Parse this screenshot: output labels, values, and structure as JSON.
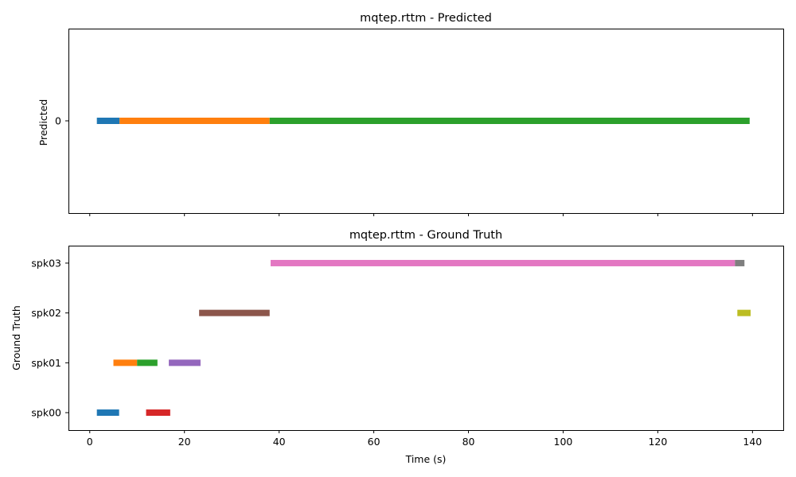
{
  "chart_data": [
    {
      "type": "timeline",
      "title": "mqtep.rttm - Predicted",
      "ylabel": "Predicted",
      "xlabel": "",
      "xlim": [
        -4.5,
        146.5
      ],
      "x_ticks": [
        0,
        20,
        40,
        60,
        80,
        100,
        120,
        140
      ],
      "x_tick_labels_visible": false,
      "categories": [
        "0"
      ],
      "grid": false,
      "series": [
        {
          "category": "0",
          "start": 1.5,
          "end": 6.3,
          "color": "#1f77b4"
        },
        {
          "category": "0",
          "start": 6.3,
          "end": 38.0,
          "color": "#ff7f0e"
        },
        {
          "category": "0",
          "start": 38.0,
          "end": 139.4,
          "color": "#2ca02c"
        }
      ]
    },
    {
      "type": "timeline",
      "title": "mqtep.rttm - Ground Truth",
      "ylabel": "Ground Truth",
      "xlabel": "Time (s)",
      "xlim": [
        -4.5,
        146.5
      ],
      "x_ticks": [
        0,
        20,
        40,
        60,
        80,
        100,
        120,
        140
      ],
      "x_tick_labels_visible": true,
      "categories": [
        "spk00",
        "spk01",
        "spk02",
        "spk03"
      ],
      "grid": false,
      "series": [
        {
          "category": "spk00",
          "start": 1.5,
          "end": 6.2,
          "color": "#1f77b4"
        },
        {
          "category": "spk01",
          "start": 5.0,
          "end": 10.0,
          "color": "#ff7f0e"
        },
        {
          "category": "spk01",
          "start": 10.0,
          "end": 14.3,
          "color": "#2ca02c"
        },
        {
          "category": "spk00",
          "start": 11.9,
          "end": 17.0,
          "color": "#d62728"
        },
        {
          "category": "spk01",
          "start": 16.7,
          "end": 23.4,
          "color": "#9467bd"
        },
        {
          "category": "spk02",
          "start": 23.1,
          "end": 38.0,
          "color": "#8c564b"
        },
        {
          "category": "spk03",
          "start": 38.2,
          "end": 136.3,
          "color": "#e377c2"
        },
        {
          "category": "spk03",
          "start": 136.3,
          "end": 138.3,
          "color": "#7f7f7f"
        },
        {
          "category": "spk02",
          "start": 136.8,
          "end": 139.6,
          "color": "#bcbd22"
        }
      ]
    }
  ]
}
